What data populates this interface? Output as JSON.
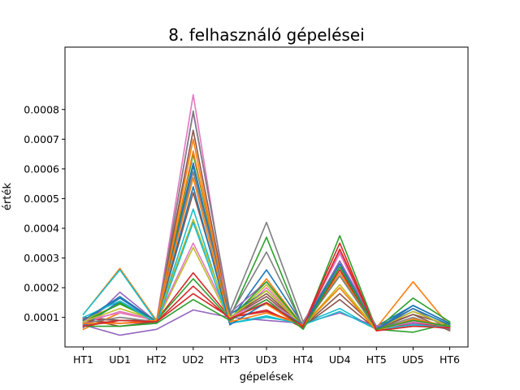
{
  "chart_data": {
    "type": "line",
    "title": "8. felhasználó gépelései",
    "xlabel": "gépelések",
    "ylabel": "érték",
    "categories": [
      "HT1",
      "UD1",
      "HT2",
      "UD2",
      "HT3",
      "UD3",
      "HT4",
      "UD4",
      "HT5",
      "UD5",
      "HT6"
    ],
    "ylim": [
      5e-07,
      0.00101
    ],
    "yticks": [
      0.0001,
      0.0002,
      0.0003,
      0.0004,
      0.0005,
      0.0006,
      0.0007,
      0.0008
    ],
    "ytick_labels": [
      "0.0001",
      "0.0002",
      "0.0003",
      "0.0004",
      "0.0005",
      "0.0006",
      "0.0007",
      "0.0008"
    ],
    "grid": false,
    "series": [
      {
        "color": "#1f77b4",
        "values": [
          8.5e-05,
          0.000165,
          8.5e-05,
          0.00062,
          9e-05,
          0.00026,
          7.5e-05,
          0.00029,
          7e-05,
          0.00014,
          8e-05
        ]
      },
      {
        "color": "#ff7f0e",
        "values": [
          0.00011,
          0.000265,
          9e-05,
          0.0007,
          8e-05,
          0.00023,
          7e-05,
          0.00033,
          6.5e-05,
          0.00022,
          7e-05
        ]
      },
      {
        "color": "#2ca02c",
        "values": [
          7.5e-05,
          0.00015,
          8e-05,
          0.00065,
          0.0001,
          0.00037,
          6.5e-05,
          0.000375,
          6e-05,
          0.000165,
          8.5e-05
        ]
      },
      {
        "color": "#d62728",
        "values": [
          9.5e-05,
          9e-05,
          9e-05,
          0.00025,
          0.0001,
          0.00012,
          7.5e-05,
          0.00035,
          5.5e-05,
          7e-05,
          7e-05
        ]
      },
      {
        "color": "#9467bd",
        "values": [
          6.5e-05,
          0.000185,
          8.5e-05,
          0.00079,
          0.000115,
          0.00022,
          7e-05,
          0.00029,
          6.5e-05,
          0.00012,
          7e-05
        ]
      },
      {
        "color": "#8c564b",
        "values": [
          0.0001,
          9e-05,
          9e-05,
          0.00073,
          0.0001,
          0.00017,
          7e-05,
          0.00018,
          6.5e-05,
          0.00011,
          7.5e-05
        ]
      },
      {
        "color": "#e377c2",
        "values": [
          8e-05,
          0.00012,
          9e-05,
          0.00085,
          8.5e-05,
          0.0002,
          7e-05,
          0.00032,
          6e-05,
          9e-05,
          7e-05
        ]
      },
      {
        "color": "#7f7f7f",
        "values": [
          7.5e-05,
          9e-05,
          8.5e-05,
          0.000795,
          0.00012,
          0.00042,
          8.5e-05,
          0.00028,
          6.5e-05,
          0.00013,
          6e-05
        ]
      },
      {
        "color": "#bcbd22",
        "values": [
          9e-05,
          0.000145,
          8.5e-05,
          0.000335,
          9e-05,
          0.00021,
          7e-05,
          0.00021,
          6e-05,
          0.00012,
          7e-05
        ]
      },
      {
        "color": "#17becf",
        "values": [
          0.00011,
          0.00026,
          8.5e-05,
          0.000465,
          8e-05,
          0.0001,
          8e-05,
          0.00013,
          6e-05,
          8e-05,
          7e-05
        ]
      },
      {
        "color": "#1f77b4",
        "values": [
          7e-05,
          0.000155,
          8.5e-05,
          0.00061,
          0.00011,
          0.00019,
          7e-05,
          0.00027,
          6e-05,
          0.00014,
          8e-05
        ]
      },
      {
        "color": "#ff7f0e",
        "values": [
          6e-05,
          0.000115,
          9e-05,
          0.00066,
          0.0001,
          0.000145,
          6.5e-05,
          0.00025,
          6e-05,
          9e-05,
          7e-05
        ]
      },
      {
        "color": "#2ca02c",
        "values": [
          8.5e-05,
          0.000145,
          9e-05,
          0.00023,
          9.5e-05,
          0.00022,
          7e-05,
          0.00024,
          6e-05,
          5e-05,
          8e-05
        ]
      },
      {
        "color": "#d62728",
        "values": [
          9e-05,
          8e-05,
          8.5e-05,
          0.00018,
          0.0001,
          0.000125,
          6.5e-05,
          0.00026,
          6e-05,
          8e-05,
          7e-05
        ]
      },
      {
        "color": "#9467bd",
        "values": [
          7.5e-05,
          4e-05,
          6e-05,
          0.000125,
          0.0001,
          9e-05,
          8e-05,
          0.000115,
          7e-05,
          8e-05,
          6e-05
        ]
      },
      {
        "color": "#8c564b",
        "values": [
          9.5e-05,
          7e-05,
          8.5e-05,
          0.00052,
          0.0001,
          0.00018,
          7e-05,
          0.00016,
          6e-05,
          0.00011,
          5.5e-05
        ]
      },
      {
        "color": "#e377c2",
        "values": [
          9e-05,
          0.000115,
          9e-05,
          0.00035,
          0.0001,
          0.00016,
          7.5e-05,
          0.000315,
          6e-05,
          8.5e-05,
          7e-05
        ]
      },
      {
        "color": "#7f7f7f",
        "values": [
          8e-05,
          0.0001,
          8.5e-05,
          0.00059,
          0.000105,
          0.00032,
          7e-05,
          0.00024,
          6e-05,
          0.0001,
          6e-05
        ]
      },
      {
        "color": "#bcbd22",
        "values": [
          8.5e-05,
          0.00013,
          9e-05,
          0.00043,
          0.0001,
          0.00019,
          7e-05,
          0.0002,
          6e-05,
          9e-05,
          7e-05
        ]
      },
      {
        "color": "#17becf",
        "values": [
          0.0001,
          0.000155,
          8e-05,
          0.00042,
          8e-05,
          0.000105,
          7.5e-05,
          0.00012,
          6e-05,
          7.5e-05,
          6.5e-05
        ]
      },
      {
        "color": "#1f77b4",
        "values": [
          9e-05,
          0.00017,
          8.5e-05,
          0.00054,
          7.5e-05,
          0.00015,
          7.5e-05,
          0.00028,
          6e-05,
          0.00013,
          7.5e-05
        ]
      },
      {
        "color": "#ff7f0e",
        "values": [
          8e-05,
          8e-05,
          9e-05,
          0.00057,
          8.5e-05,
          0.000115,
          7.5e-05,
          0.0002,
          5.5e-05,
          9.5e-05,
          7e-05
        ]
      },
      {
        "color": "#2ca02c",
        "values": [
          7e-05,
          7e-05,
          8e-05,
          0.00016,
          9e-05,
          0.00016,
          6e-05,
          0.00027,
          6e-05,
          9e-05,
          7e-05
        ]
      },
      {
        "color": "#d62728",
        "values": [
          7e-05,
          9e-05,
          8.5e-05,
          0.000205,
          9.5e-05,
          0.00015,
          7e-05,
          0.00033,
          5.5e-05,
          7e-05,
          6.5e-05
        ]
      }
    ]
  }
}
